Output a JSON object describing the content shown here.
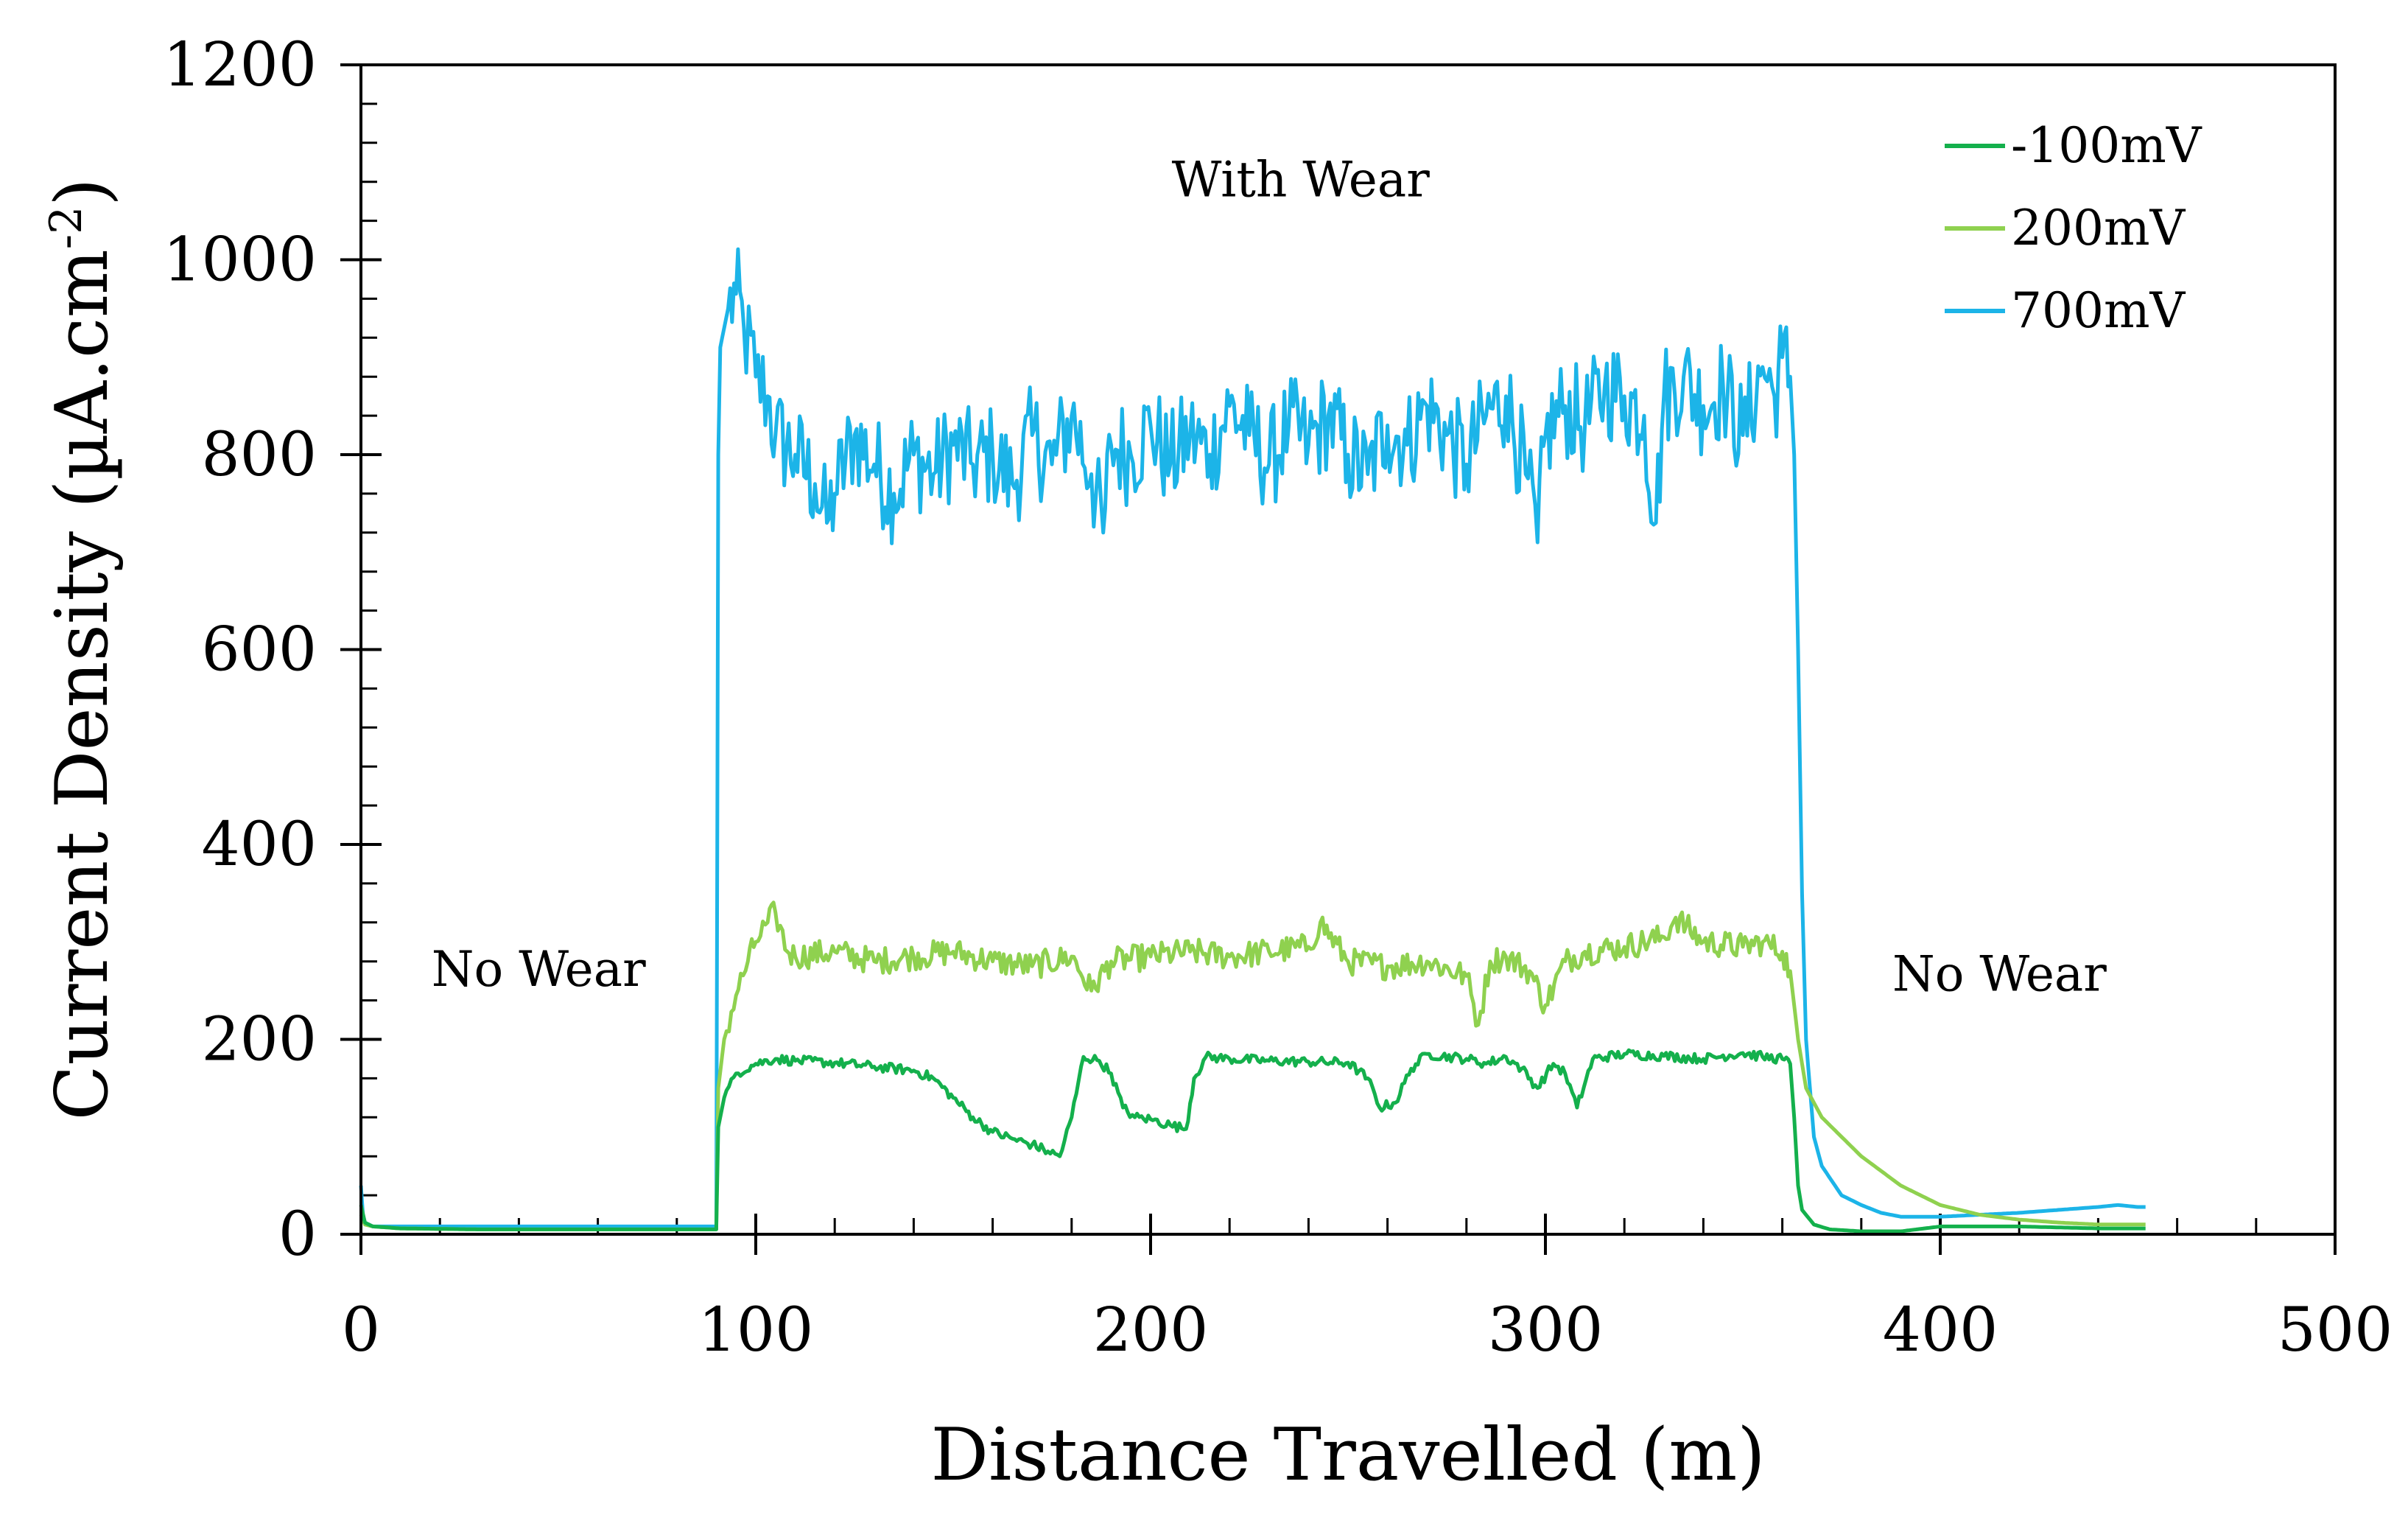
{
  "chart_data": {
    "type": "line",
    "title": "",
    "xlabel": "Distance Travelled (m)",
    "ylabel": "Current Density (µA.cm-2)",
    "ylabel_parts": {
      "base": "Current Density (µA.cm",
      "sup": "-2",
      "close": ")"
    },
    "xlim": [
      0,
      500
    ],
    "ylim": [
      0,
      1200
    ],
    "xticks": [
      0,
      100,
      200,
      300,
      400,
      500
    ],
    "yticks": [
      0,
      200,
      400,
      600,
      800,
      1000,
      1200
    ],
    "x_minor_step": 20,
    "y_minor_step": 40,
    "grid": false,
    "legend_position": "top-right",
    "annotations": [
      {
        "id": "no-wear-left",
        "text": "No Wear",
        "x": 45,
        "y": 255
      },
      {
        "id": "with-wear",
        "text": "With Wear",
        "x": 238,
        "y": 1065
      },
      {
        "id": "no-wear-right",
        "text": "No Wear",
        "x": 415,
        "y": 250
      }
    ],
    "series": [
      {
        "name": "-100mV",
        "color": "#14b04c",
        "x": [
          0,
          1,
          3,
          10,
          30,
          60,
          90,
          90.5,
          92,
          95,
          100,
          105,
          110,
          120,
          130,
          140,
          145,
          150,
          155,
          160,
          165,
          170,
          174,
          177,
          180,
          183,
          187,
          190,
          193,
          196,
          200,
          205,
          209,
          211,
          214,
          220,
          230,
          240,
          250,
          255,
          258,
          262,
          266,
          270,
          280,
          285,
          290,
          294,
          298,
          302,
          305,
          308,
          312,
          320,
          330,
          340,
          350,
          355,
          360,
          362,
          363,
          364,
          365,
          368,
          372,
          380,
          390,
          400,
          420,
          440,
          452
        ],
        "y": [
          30,
          12,
          8,
          6,
          5,
          5,
          5,
          110,
          140,
          165,
          175,
          180,
          178,
          176,
          172,
          168,
          160,
          140,
          120,
          105,
          98,
          92,
          85,
          80,
          120,
          182,
          178,
          165,
          130,
          120,
          118,
          112,
          108,
          160,
          182,
          180,
          178,
          177,
          176,
          160,
          130,
          135,
          170,
          185,
          180,
          175,
          182,
          170,
          150,
          175,
          165,
          130,
          180,
          185,
          183,
          180,
          186,
          182,
          180,
          175,
          120,
          50,
          25,
          10,
          5,
          3,
          3,
          8,
          8,
          6,
          6
        ]
      },
      {
        "name": "200mV",
        "color": "#8fd14f",
        "x": [
          0,
          1,
          3,
          10,
          30,
          60,
          90,
          90.5,
          92,
          95,
          98,
          100,
          103,
          105,
          108,
          110,
          120,
          130,
          140,
          150,
          160,
          170,
          180,
          185,
          190,
          200,
          210,
          220,
          230,
          240,
          243,
          250,
          260,
          270,
          280,
          283,
          286,
          290,
          296,
          300,
          305,
          310,
          320,
          330,
          333,
          340,
          350,
          355,
          360,
          362,
          364,
          366,
          370,
          375,
          380,
          385,
          390,
          395,
          400,
          410,
          420,
          430,
          440,
          452
        ],
        "y": [
          20,
          10,
          8,
          6,
          5,
          5,
          5,
          150,
          200,
          245,
          280,
          300,
          320,
          330,
          290,
          285,
          290,
          280,
          285,
          290,
          280,
          275,
          285,
          250,
          280,
          285,
          290,
          285,
          290,
          295,
          320,
          280,
          275,
          280,
          265,
          215,
          280,
          285,
          270,
          235,
          280,
          290,
          295,
          305,
          325,
          300,
          295,
          300,
          290,
          270,
          200,
          150,
          120,
          100,
          80,
          65,
          50,
          40,
          30,
          20,
          15,
          12,
          10,
          10
        ]
      },
      {
        "name": "700mV",
        "color": "#1cb4e8",
        "x": [
          0,
          0.5,
          1,
          2,
          3,
          5,
          10,
          30,
          60,
          90,
          90.5,
          91,
          93,
          95,
          97,
          100,
          103,
          105,
          110,
          115,
          118,
          120,
          125,
          130,
          135,
          140,
          145,
          150,
          155,
          160,
          165,
          170,
          175,
          180,
          185,
          188,
          190,
          195,
          200,
          205,
          210,
          215,
          220,
          225,
          230,
          235,
          240,
          245,
          250,
          255,
          260,
          265,
          270,
          275,
          280,
          285,
          290,
          295,
          298,
          300,
          305,
          310,
          315,
          320,
          325,
          328,
          330,
          335,
          340,
          345,
          350,
          355,
          358,
          360,
          362,
          363,
          364,
          365,
          366,
          368,
          370,
          375,
          380,
          385,
          390,
          395,
          400,
          410,
          420,
          430,
          440,
          445,
          450,
          452
        ],
        "y": [
          50,
          20,
          12,
          10,
          8,
          8,
          8,
          8,
          8,
          8,
          800,
          910,
          950,
          965,
          930,
          880,
          860,
          820,
          800,
          770,
          730,
          760,
          820,
          790,
          760,
          800,
          780,
          810,
          790,
          800,
          770,
          820,
          790,
          840,
          780,
          720,
          810,
          800,
          830,
          790,
          820,
          800,
          850,
          820,
          790,
          830,
          810,
          840,
          800,
          780,
          830,
          810,
          850,
          820,
          790,
          840,
          860,
          780,
          710,
          820,
          850,
          830,
          870,
          860,
          840,
          730,
          860,
          880,
          850,
          870,
          820,
          890,
          860,
          900,
          880,
          800,
          600,
          350,
          200,
          100,
          70,
          40,
          30,
          22,
          18,
          18,
          18,
          20,
          22,
          25,
          28,
          30,
          28,
          28
        ]
      }
    ]
  }
}
